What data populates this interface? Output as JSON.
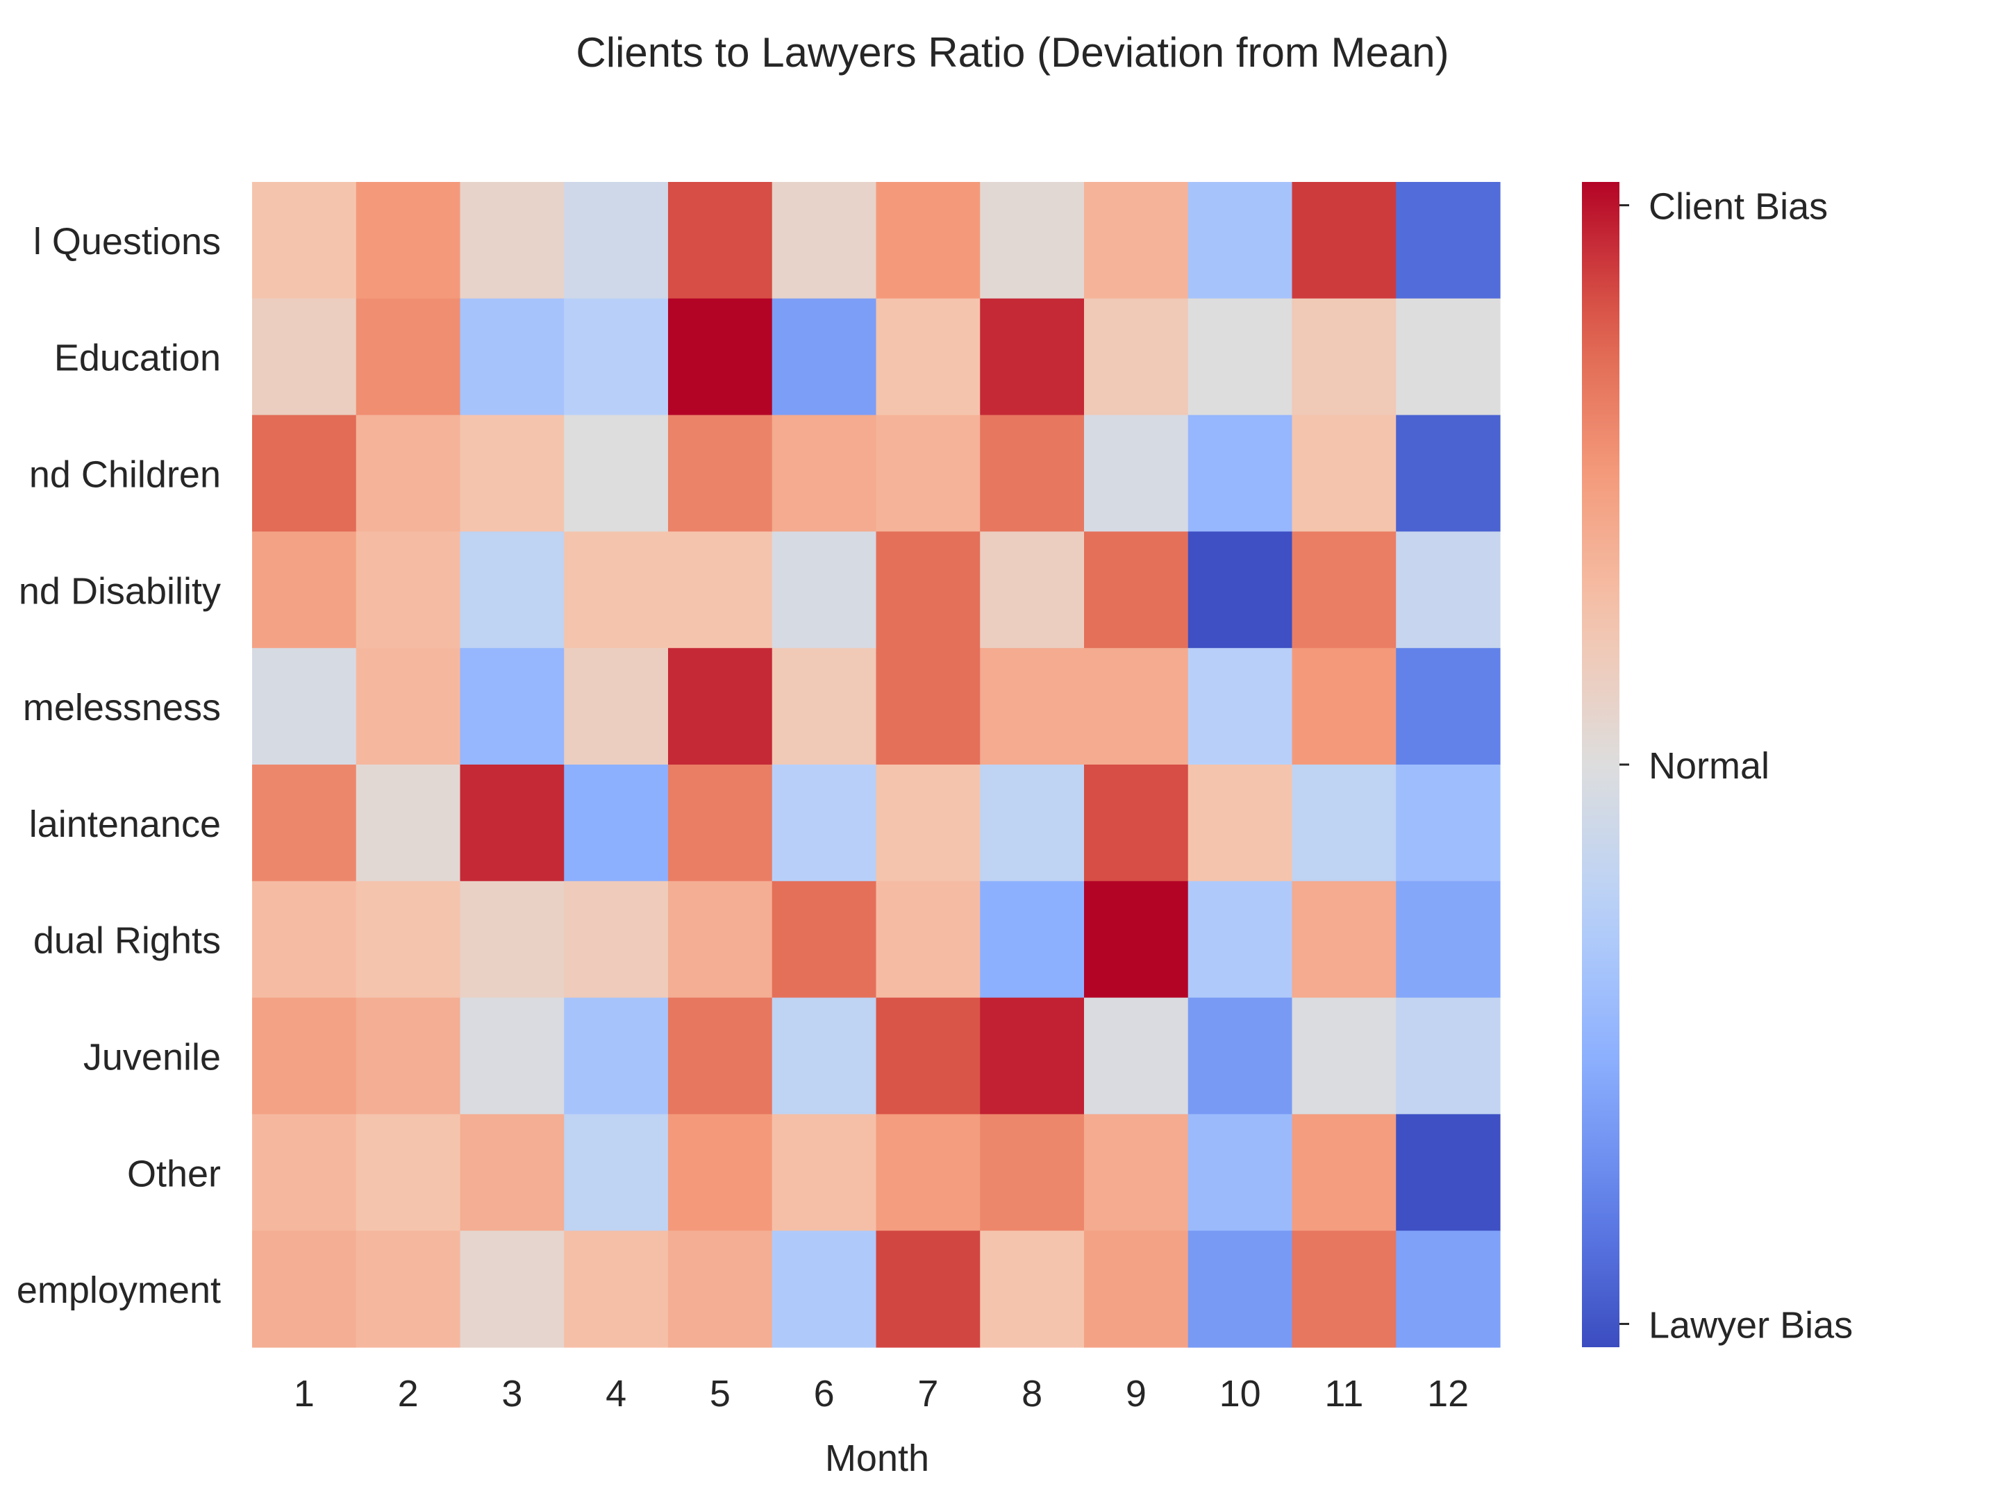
{
  "chart_data": {
    "type": "heatmap",
    "title": "Clients to Lawyers Ratio (Deviation from Mean)",
    "xlabel": "Month",
    "ylabel": "",
    "x": [
      "1",
      "2",
      "3",
      "4",
      "5",
      "6",
      "7",
      "8",
      "9",
      "10",
      "11",
      "12"
    ],
    "y": [
      "l Questions",
      "Education",
      "nd Children",
      "nd Disability",
      "melessness",
      "laintenance",
      "dual Rights",
      "Juvenile",
      "Other",
      "employment"
    ],
    "values": [
      [
        0.25,
        0.5,
        0.1,
        -0.1,
        0.8,
        0.1,
        0.5,
        0.05,
        0.35,
        -0.35,
        0.85,
        -0.85
      ],
      [
        0.15,
        0.55,
        -0.35,
        -0.25,
        1.0,
        -0.6,
        0.25,
        0.9,
        0.2,
        0.0,
        0.2,
        0.0
      ],
      [
        0.7,
        0.35,
        0.25,
        0.0,
        0.6,
        0.4,
        0.35,
        0.65,
        -0.05,
        -0.45,
        0.25,
        -0.9
      ],
      [
        0.45,
        0.3,
        -0.2,
        0.25,
        0.25,
        -0.05,
        0.68,
        0.15,
        0.68,
        -0.98,
        0.62,
        -0.15
      ],
      [
        -0.05,
        0.32,
        -0.45,
        0.15,
        0.9,
        0.2,
        0.68,
        0.4,
        0.4,
        -0.25,
        0.5,
        -0.75
      ],
      [
        0.58,
        0.05,
        0.9,
        -0.5,
        0.62,
        -0.25,
        0.25,
        -0.2,
        0.8,
        0.25,
        -0.2,
        -0.4
      ],
      [
        0.3,
        0.25,
        0.12,
        0.18,
        0.38,
        0.68,
        0.3,
        -0.5,
        1.0,
        -0.3,
        0.4,
        -0.55
      ],
      [
        0.45,
        0.38,
        -0.03,
        -0.35,
        0.65,
        -0.2,
        0.78,
        0.92,
        -0.03,
        -0.62,
        -0.02,
        -0.18
      ],
      [
        0.32,
        0.25,
        0.38,
        -0.2,
        0.5,
        0.28,
        0.48,
        0.58,
        0.4,
        -0.42,
        0.48,
        -0.98
      ],
      [
        0.38,
        0.32,
        0.08,
        0.28,
        0.38,
        -0.3,
        0.82,
        0.25,
        0.45,
        -0.62,
        0.65,
        -0.58
      ]
    ],
    "vmin": -1,
    "vmax": 1,
    "colormap": "coolwarm",
    "colorbar": {
      "ticks": [
        0.96,
        0.0,
        -0.96
      ],
      "labels": [
        "Client Bias",
        "Normal",
        "Lawyer Bias"
      ]
    },
    "grid": false,
    "legend": "colorbar-right"
  }
}
